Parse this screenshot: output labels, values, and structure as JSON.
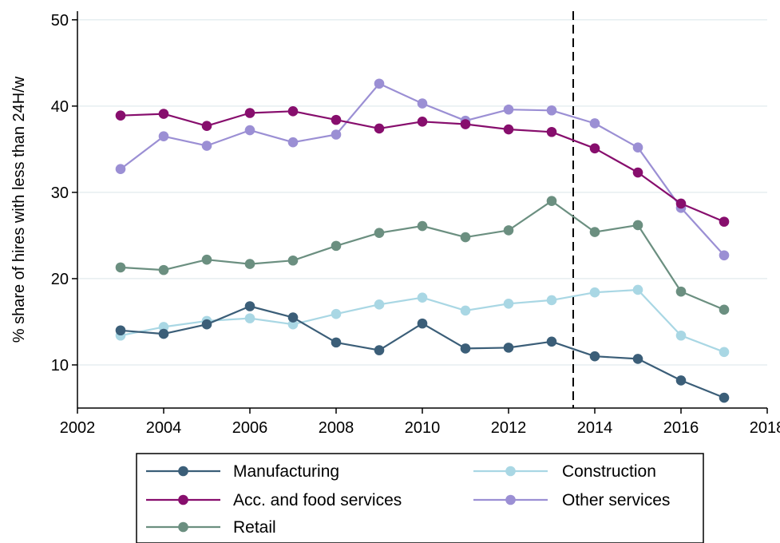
{
  "chart_data": {
    "type": "line",
    "xlabel": "",
    "ylabel": "% share of hires with less than 24H/w",
    "xlim": [
      2002,
      2018
    ],
    "ylim": [
      5,
      51
    ],
    "x_ticks": [
      2002,
      2004,
      2006,
      2008,
      2010,
      2012,
      2014,
      2016,
      2018
    ],
    "y_ticks": [
      10,
      20,
      30,
      40,
      50
    ],
    "grid": "horizontal",
    "legend_placement": "bottom",
    "vertical_reference_line": {
      "x": 2013.5,
      "style": "dashed"
    },
    "x": [
      2003,
      2004,
      2005,
      2006,
      2007,
      2008,
      2009,
      2010,
      2011,
      2012,
      2013,
      2014,
      2015,
      2016,
      2017
    ],
    "series": [
      {
        "name": "Manufacturing",
        "color": "#3b5e78",
        "values": [
          14.0,
          13.6,
          14.7,
          16.8,
          15.5,
          12.6,
          11.7,
          14.8,
          11.9,
          12.0,
          12.7,
          11.0,
          10.7,
          8.2,
          6.2
        ]
      },
      {
        "name": "Construction",
        "color": "#a9d7e4",
        "values": [
          13.4,
          14.4,
          15.1,
          15.4,
          14.7,
          15.9,
          17.0,
          17.8,
          16.3,
          17.1,
          17.5,
          18.4,
          18.7,
          13.4,
          11.5
        ]
      },
      {
        "name": "Acc. and food services",
        "color": "#870e6d",
        "values": [
          38.9,
          39.1,
          37.7,
          39.2,
          39.4,
          38.4,
          37.4,
          38.2,
          37.9,
          37.3,
          37.0,
          35.1,
          32.3,
          28.7,
          26.6
        ]
      },
      {
        "name": "Other services",
        "color": "#9b8fd4",
        "values": [
          32.7,
          36.5,
          35.4,
          37.2,
          35.8,
          36.7,
          42.6,
          40.3,
          38.3,
          39.6,
          39.5,
          38.0,
          35.2,
          28.2,
          22.7
        ]
      },
      {
        "name": "Retail",
        "color": "#6b8f80",
        "values": [
          21.3,
          21.0,
          22.2,
          21.7,
          22.1,
          23.8,
          25.3,
          26.1,
          24.8,
          25.6,
          29.0,
          25.4,
          26.2,
          18.5,
          16.4
        ]
      }
    ]
  }
}
